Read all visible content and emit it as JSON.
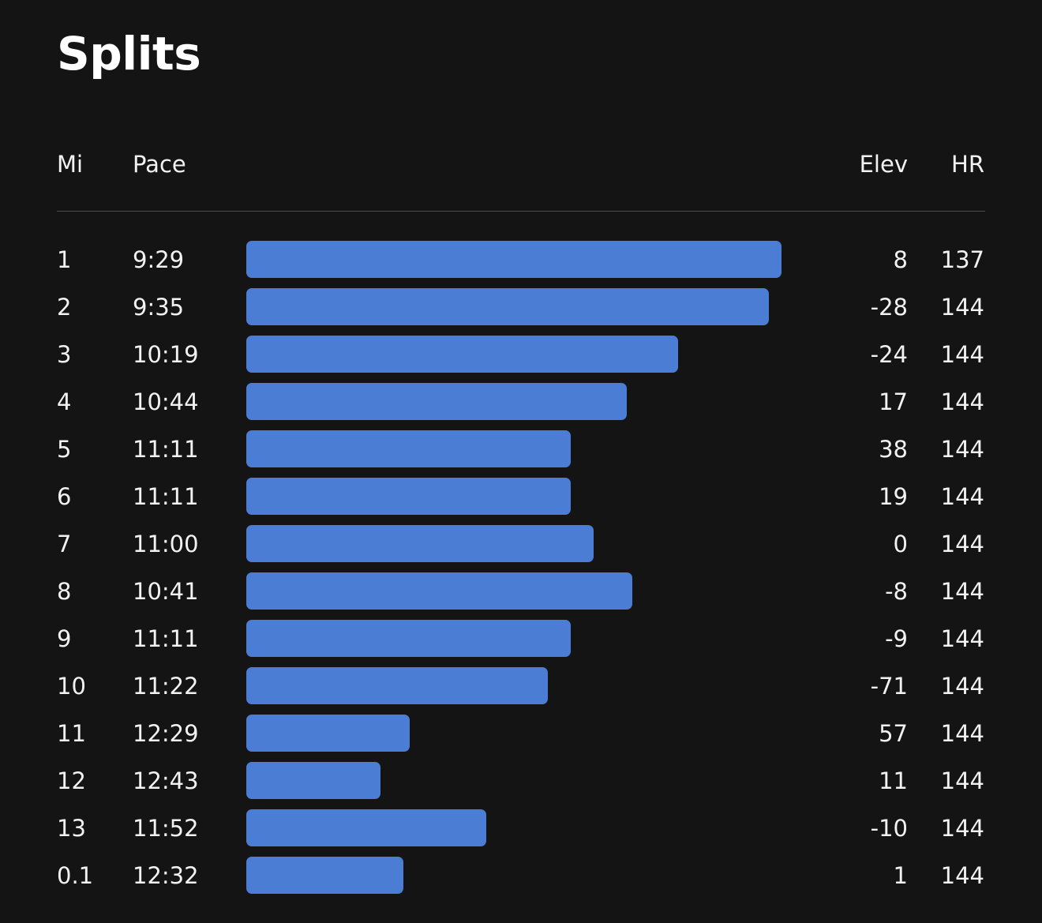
{
  "page": {
    "title": "Splits"
  },
  "columns": {
    "mi": "Mi",
    "pace": "Pace",
    "elev": "Elev",
    "hr": "HR"
  },
  "colors": {
    "background": "#141414",
    "bar": "#4a7dd3",
    "divider": "#4a4a4a",
    "text": "#ffffff"
  },
  "splits": [
    {
      "mi": "1",
      "pace": "9:29",
      "elev": "8",
      "hr": "137"
    },
    {
      "mi": "2",
      "pace": "9:35",
      "elev": "-28",
      "hr": "144"
    },
    {
      "mi": "3",
      "pace": "10:19",
      "elev": "-24",
      "hr": "144"
    },
    {
      "mi": "4",
      "pace": "10:44",
      "elev": "17",
      "hr": "144"
    },
    {
      "mi": "5",
      "pace": "11:11",
      "elev": "38",
      "hr": "144"
    },
    {
      "mi": "6",
      "pace": "11:11",
      "elev": "19",
      "hr": "144"
    },
    {
      "mi": "7",
      "pace": "11:00",
      "elev": "0",
      "hr": "144"
    },
    {
      "mi": "8",
      "pace": "10:41",
      "elev": "-8",
      "hr": "144"
    },
    {
      "mi": "9",
      "pace": "11:11",
      "elev": "-9",
      "hr": "144"
    },
    {
      "mi": "10",
      "pace": "11:22",
      "elev": "-71",
      "hr": "144"
    },
    {
      "mi": "11",
      "pace": "12:29",
      "elev": "57",
      "hr": "144"
    },
    {
      "mi": "12",
      "pace": "12:43",
      "elev": "11",
      "hr": "144"
    },
    {
      "mi": "13",
      "pace": "11:52",
      "elev": "-10",
      "hr": "144"
    },
    {
      "mi": "0.1",
      "pace": "12:32",
      "elev": "1",
      "hr": "144"
    }
  ]
}
